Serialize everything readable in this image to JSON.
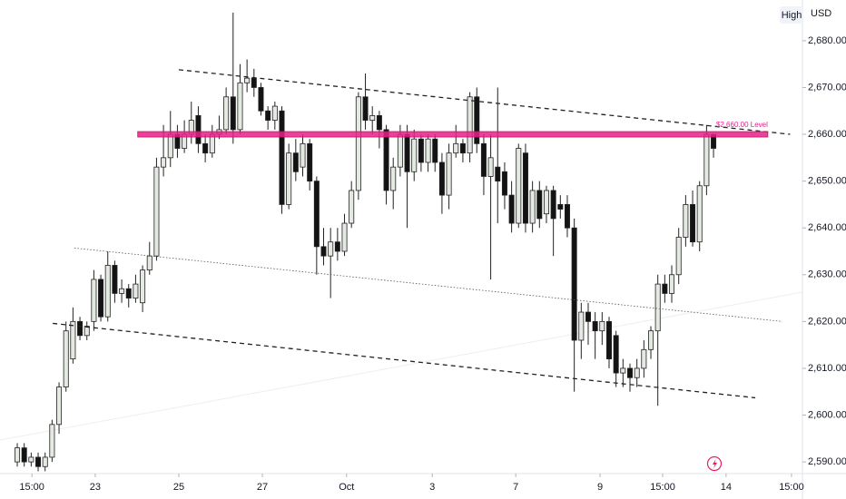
{
  "chart_data": {
    "type": "candlestick",
    "open": [
      2590,
      2593,
      2590,
      2591,
      2589,
      2591,
      2598,
      2606,
      2612,
      2620,
      2617,
      2620,
      2629,
      2621,
      2632,
      2626,
      2627,
      2625,
      2624,
      2631,
      2634,
      2653,
      2655,
      2660,
      2657,
      2660,
      2664,
      2658,
      2656,
      2660,
      2661,
      2668,
      2661,
      2671,
      2672,
      2670,
      2665,
      2663,
      2665,
      2645,
      2656,
      2653,
      2658,
      2650,
      2636,
      2634,
      2637,
      2635,
      2641,
      2648,
      2668,
      2663,
      2664,
      2661,
      2648,
      2653,
      2660,
      2652,
      2659,
      2654,
      2659,
      2654,
      2647,
      2656,
      2658,
      2656,
      2668,
      2658,
      2651,
      2653,
      2652,
      2647,
      2641,
      2656,
      2641,
      2648,
      2643,
      2648,
      2645,
      2645,
      2640,
      2616,
      2622,
      2620,
      2618,
      2620,
      2617,
      2609,
      2610,
      2608,
      2610,
      2614,
      2618,
      2628,
      2626,
      2630,
      2638,
      2645,
      2637,
      2649,
      2660
    ],
    "high": [
      2594,
      2594,
      2592,
      2592,
      2592,
      2599,
      2607,
      2620,
      2623,
      2621,
      2620,
      2631,
      2630,
      2635,
      2633,
      2629,
      2628,
      2630,
      2632,
      2637,
      2655,
      2662,
      2665,
      2662,
      2663,
      2667,
      2666,
      2660,
      2662,
      2664,
      2670,
      2686,
      2675,
      2676,
      2674,
      2671,
      2666,
      2667,
      2666,
      2658,
      2659,
      2660,
      2659,
      2651,
      2640,
      2640,
      2640,
      2643,
      2650,
      2669,
      2673,
      2666,
      2665,
      2662,
      2655,
      2662,
      2662,
      2661,
      2660,
      2660,
      2660,
      2656,
      2658,
      2662,
      2659,
      2669,
      2670,
      2660,
      2660,
      2670,
      2654,
      2650,
      2658,
      2658,
      2650,
      2650,
      2649,
      2649,
      2647,
      2647,
      2642,
      2624,
      2624,
      2622,
      2622,
      2621,
      2618,
      2612,
      2611,
      2612,
      2616,
      2619,
      2630,
      2630,
      2632,
      2640,
      2647,
      2648,
      2650,
      2662,
      2660
    ],
    "low": [
      2589,
      2589,
      2589,
      2588,
      2588,
      2590,
      2596,
      2605,
      2611,
      2616,
      2616,
      2618,
      2620,
      2620,
      2624,
      2624,
      2623,
      2624,
      2622,
      2630,
      2633,
      2651,
      2653,
      2655,
      2656,
      2658,
      2656,
      2654,
      2655,
      2659,
      2660,
      2658,
      2660,
      2669,
      2668,
      2664,
      2661,
      2661,
      2643,
      2644,
      2650,
      2651,
      2648,
      2630,
      2632,
      2625,
      2633,
      2634,
      2640,
      2646,
      2661,
      2660,
      2657,
      2645,
      2644,
      2651,
      2640,
      2650,
      2652,
      2652,
      2652,
      2643,
      2644,
      2655,
      2654,
      2654,
      2656,
      2647,
      2629,
      2641,
      2644,
      2639,
      2640,
      2639,
      2639,
      2640,
      2641,
      2634,
      2642,
      2638,
      2605,
      2612,
      2615,
      2612,
      2615,
      2610,
      2606,
      2606,
      2605,
      2606,
      2608,
      2612,
      2602,
      2624,
      2624,
      2628,
      2636,
      2636,
      2635,
      2647,
      2655
    ],
    "close": [
      2593,
      2590,
      2591,
      2589,
      2591,
      2598,
      2606,
      2618,
      2620,
      2617,
      2619,
      2629,
      2621,
      2632,
      2626,
      2627,
      2625,
      2628,
      2631,
      2634,
      2653,
      2655,
      2660,
      2657,
      2660,
      2663,
      2658,
      2656,
      2660,
      2661,
      2668,
      2661,
      2671,
      2672,
      2670,
      2665,
      2663,
      2666,
      2645,
      2656,
      2652,
      2658,
      2650,
      2636,
      2634,
      2637,
      2635,
      2641,
      2648,
      2668,
      2663,
      2664,
      2661,
      2648,
      2653,
      2660,
      2652,
      2659,
      2654,
      2659,
      2654,
      2647,
      2656,
      2658,
      2656,
      2668,
      2658,
      2651,
      2655,
      2650,
      2647,
      2641,
      2657,
      2641,
      2648,
      2642,
      2648,
      2642,
      2644,
      2640,
      2616,
      2622,
      2620,
      2618,
      2620,
      2612,
      2609,
      2610,
      2608,
      2610,
      2614,
      2618,
      2628,
      2626,
      2630,
      2638,
      2645,
      2637,
      2649,
      2660,
      2657
    ],
    "up_color": "#e4e9e2",
    "down_color": "#131313",
    "outline_color": "#222222",
    "xlim": [
      -2.48,
      112.77
    ],
    "xticks": [
      {
        "value": 2.1,
        "label": "15:00"
      },
      {
        "value": 11.2,
        "label": "23"
      },
      {
        "value": 23.2,
        "label": "25"
      },
      {
        "value": 35.2,
        "label": "27"
      },
      {
        "value": 47.3,
        "label": "Oct"
      },
      {
        "value": 59.6,
        "label": "3"
      },
      {
        "value": 71.6,
        "label": "7"
      },
      {
        "value": 83.7,
        "label": "9"
      },
      {
        "value": 92.7,
        "label": "15:00"
      },
      {
        "value": 101.8,
        "label": "14"
      },
      {
        "value": 111.2,
        "label": "15:00"
      }
    ],
    "ylim": [
      2587.5,
      2688.7
    ],
    "yticks": [
      {
        "value": 2590,
        "label": "2,590.00"
      },
      {
        "value": 2600,
        "label": "2,600.00"
      },
      {
        "value": 2610,
        "label": "2,610.00"
      },
      {
        "value": 2620,
        "label": "2,620.00"
      },
      {
        "value": 2630,
        "label": "2,630.00"
      },
      {
        "value": 2640,
        "label": "2,640.00"
      },
      {
        "value": 2650,
        "label": "2,650.00"
      },
      {
        "value": 2660,
        "label": "2,660.00"
      },
      {
        "value": 2670,
        "label": "2,670.00"
      },
      {
        "value": 2680,
        "label": "2,680.00"
      }
    ],
    "level": {
      "value": 2660,
      "label": "$2,660.00 Level",
      "color": "#e91e8c",
      "x": [
        17.3,
        107.8
      ]
    },
    "lines": [
      {
        "x": [
          23.2,
          111
        ],
        "y": [
          2673.8,
          2660
        ],
        "style": "dashed"
      },
      {
        "x": [
          5.1,
          106
        ],
        "y": [
          2619.6,
          2603.7
        ],
        "style": "dashed"
      },
      {
        "x": [
          8.2,
          109.9
        ],
        "y": [
          2635.7,
          2620
        ],
        "style": "dotted"
      }
    ],
    "price_source": "High",
    "currency": "USD"
  }
}
